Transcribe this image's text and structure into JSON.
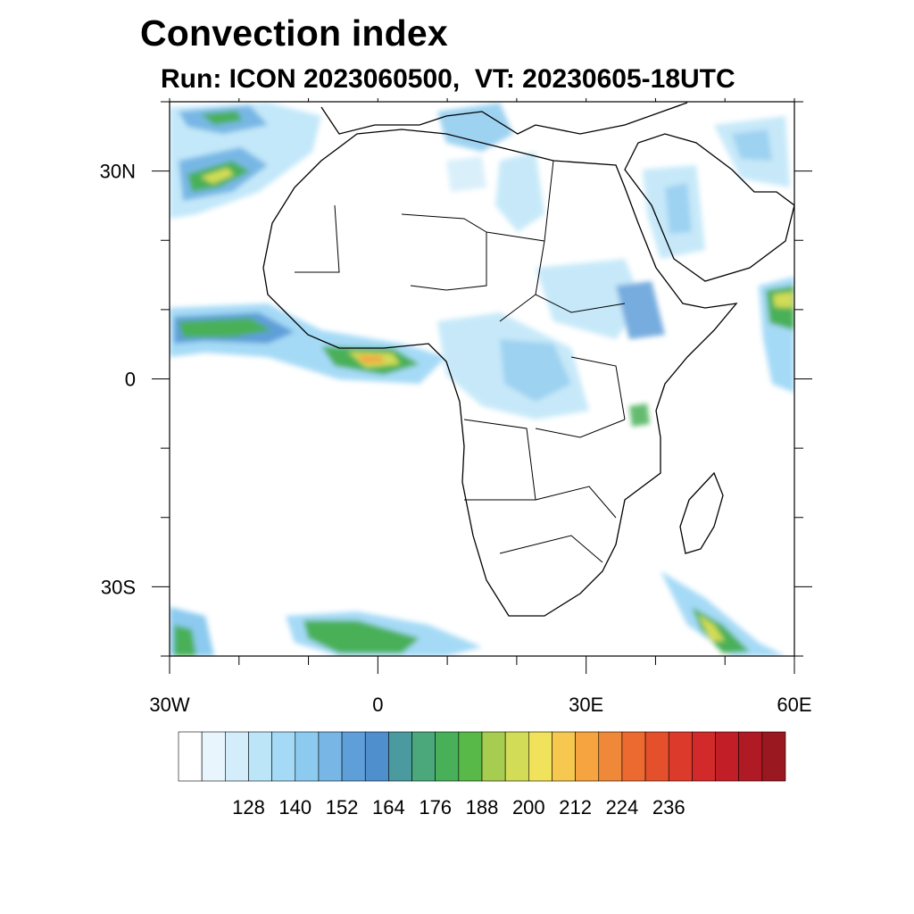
{
  "title": "Convection index",
  "subtitle": "Run: ICON 2023060500,  VT: 20230605-18UTC",
  "map": {
    "extent": {
      "lon": [
        -30,
        60
      ],
      "lat": [
        -40,
        40
      ]
    },
    "lat_labels": [
      {
        "lat": 30,
        "text": "30N"
      },
      {
        "lat": 0,
        "text": "0"
      },
      {
        "lat": -30,
        "text": "30S"
      }
    ],
    "lon_labels": [
      {
        "lon": -30,
        "text": "30W"
      },
      {
        "lon": 0,
        "text": "0"
      },
      {
        "lon": 30,
        "text": "30E"
      },
      {
        "lon": 60,
        "text": "60E"
      }
    ],
    "colorbar": {
      "tick_labels": [
        "128",
        "140",
        "152",
        "164",
        "176",
        "188",
        "200",
        "212",
        "224",
        "236"
      ],
      "colors": [
        "#ffffff",
        "#e9f5fc",
        "#d3edfa",
        "#bde5f8",
        "#a5daf6",
        "#8ccbef",
        "#78b7e5",
        "#5f9fd9",
        "#4f8fcd",
        "#4a9aa0",
        "#4aa87a",
        "#48b058",
        "#58b848",
        "#a6cc50",
        "#d2dc56",
        "#f0e25a",
        "#f6c850",
        "#f6a440",
        "#f0883a",
        "#ec6a30",
        "#e4502c",
        "#dc3a2a",
        "#d22a2a",
        "#c21e28",
        "#b01a24",
        "#9a1820"
      ]
    }
  }
}
